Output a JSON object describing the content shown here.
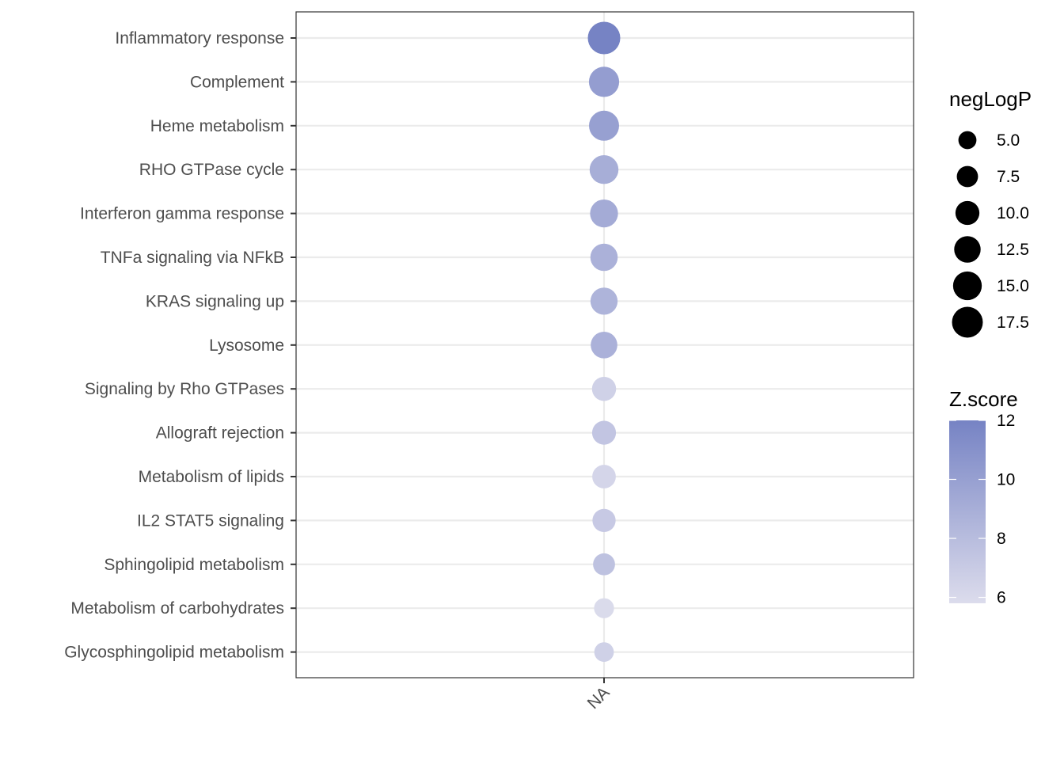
{
  "chart_data": {
    "type": "scatter",
    "x_categories": [
      "NA"
    ],
    "y_categories": [
      "Inflammatory response",
      "Complement",
      "Heme metabolism",
      "RHO GTPase cycle",
      "Interferon gamma response",
      "TNFa signaling via NFkB",
      "KRAS signaling up",
      "Lysosome",
      "Signaling by Rho GTPases",
      "Allograft rejection",
      "Metabolism of lipids",
      "IL2 STAT5 signaling",
      "Sphingolipid metabolism",
      "Metabolism of carbohydrates",
      "Glycosphingolipid metabolism"
    ],
    "points": [
      {
        "term": "Inflammatory response",
        "x": "NA",
        "negLogP": 17.5,
        "zscore": 12.0
      },
      {
        "term": "Complement",
        "x": "NA",
        "negLogP": 15.0,
        "zscore": 10.2
      },
      {
        "term": "Heme metabolism",
        "x": "NA",
        "negLogP": 14.8,
        "zscore": 10.0
      },
      {
        "term": "RHO GTPase cycle",
        "x": "NA",
        "negLogP": 13.5,
        "zscore": 9.0
      },
      {
        "term": "Interferon gamma response",
        "x": "NA",
        "negLogP": 12.6,
        "zscore": 9.2
      },
      {
        "term": "TNFa signaling via NFkB",
        "x": "NA",
        "negLogP": 12.0,
        "zscore": 8.8
      },
      {
        "term": "KRAS signaling up",
        "x": "NA",
        "negLogP": 11.8,
        "zscore": 8.6
      },
      {
        "term": "Lysosome",
        "x": "NA",
        "negLogP": 11.3,
        "zscore": 8.8
      },
      {
        "term": "Signaling by Rho GTPases",
        "x": "NA",
        "negLogP": 9.0,
        "zscore": 6.6
      },
      {
        "term": "Allograft rejection",
        "x": "NA",
        "negLogP": 8.8,
        "zscore": 7.4
      },
      {
        "term": "Metabolism of lipids",
        "x": "NA",
        "negLogP": 8.5,
        "zscore": 6.3
      },
      {
        "term": "IL2 STAT5 signaling",
        "x": "NA",
        "negLogP": 8.2,
        "zscore": 7.1
      },
      {
        "term": "Sphingolipid metabolism",
        "x": "NA",
        "negLogP": 7.2,
        "zscore": 7.6
      },
      {
        "term": "Metabolism of carbohydrates",
        "x": "NA",
        "negLogP": 5.7,
        "zscore": 5.9
      },
      {
        "term": "Glycosphingolipid metabolism",
        "x": "NA",
        "negLogP": 5.4,
        "zscore": 6.6
      }
    ],
    "size_legend": {
      "title": "negLogP",
      "values": [
        5.0,
        7.5,
        10.0,
        12.5,
        15.0,
        17.5
      ],
      "labels": [
        "5.0",
        "7.5",
        "10.0",
        "12.5",
        "15.0",
        "17.5"
      ]
    },
    "color_legend": {
      "title": "Z.score",
      "range": [
        5.8,
        12.0
      ],
      "ticks": [
        6,
        8,
        10,
        12
      ],
      "tick_labels": [
        "6",
        "8",
        "10",
        "12"
      ],
      "color_low": "#dcdcec",
      "color_high": "#7683c4"
    },
    "grid": true,
    "legend_position": "right"
  }
}
